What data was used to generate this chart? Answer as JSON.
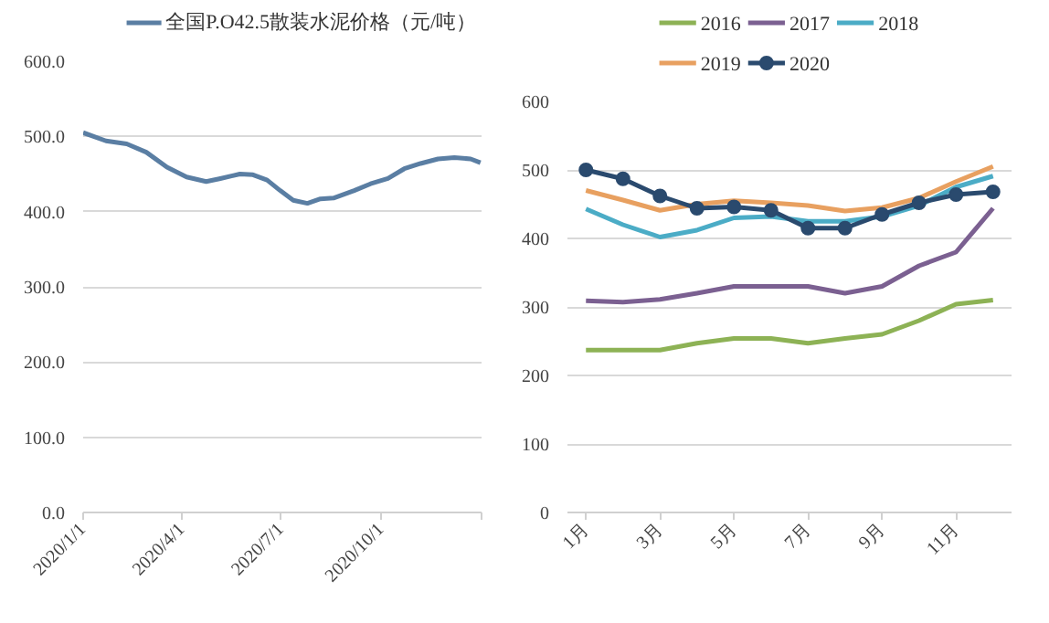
{
  "chart_data": [
    {
      "type": "line",
      "x": [
        "2020-01-01",
        "2020-01-22",
        "2020-02-10",
        "2020-02-28",
        "2020-03-18",
        "2020-04-05",
        "2020-04-23",
        "2020-05-06",
        "2020-05-24",
        "2020-06-05",
        "2020-06-18",
        "2020-06-30",
        "2020-07-12",
        "2020-07-25",
        "2020-08-06",
        "2020-08-18",
        "2020-09-06",
        "2020-09-21",
        "2020-10-07",
        "2020-10-22",
        "2020-11-06",
        "2020-11-22",
        "2020-12-07",
        "2020-12-22",
        "2020-12-31"
      ],
      "series": [
        {
          "name": "全国P.O42.5散装水泥价格（元/吨）",
          "color": "#5a7ea3",
          "values": [
            505,
            494,
            490,
            479,
            459,
            446,
            440,
            444,
            450,
            449,
            442,
            428,
            415,
            411,
            417,
            418,
            428,
            437,
            444,
            457,
            464,
            470,
            472,
            470,
            465
          ]
        }
      ],
      "xlim": [
        "2020-01-01",
        "2021-01-01"
      ],
      "xticks": [
        {
          "value": "2020-01-01",
          "label": "2020/1/1"
        },
        {
          "value": "2020-04-01",
          "label": "2020/4/1"
        },
        {
          "value": "2020-07-01",
          "label": "2020/7/1"
        },
        {
          "value": "2020-10-01",
          "label": "2020/10/1"
        },
        {
          "value": "2021-01-01",
          "label": null
        }
      ],
      "ylim": [
        0,
        600
      ],
      "yticks": [
        {
          "value": 0,
          "label": "0.0"
        },
        {
          "value": 100,
          "label": "100.0"
        },
        {
          "value": 200,
          "label": "200.0"
        },
        {
          "value": 300,
          "label": "300.0"
        },
        {
          "value": 400,
          "label": "400.0"
        },
        {
          "value": 500,
          "label": "500.0"
        },
        {
          "value": 600,
          "label": "600.0"
        }
      ],
      "grid": "y",
      "legend": "top",
      "marker": "none",
      "line_style": "solid"
    },
    {
      "type": "line",
      "categories": [
        "1月",
        null,
        "3月",
        null,
        "5月",
        null,
        "7月",
        null,
        "9月",
        null,
        "11月",
        null
      ],
      "series": [
        {
          "name": "2016",
          "color": "#8db255",
          "marker": "none",
          "values": [
            237,
            237,
            237,
            247,
            254,
            254,
            247,
            254,
            260,
            280,
            304,
            310
          ]
        },
        {
          "name": "2017",
          "color": "#7b6091",
          "marker": "none",
          "values": [
            309,
            307,
            311,
            320,
            330,
            330,
            330,
            320,
            330,
            360,
            380,
            444
          ]
        },
        {
          "name": "2018",
          "color": "#4bacc6",
          "marker": "none",
          "values": [
            443,
            420,
            402,
            412,
            430,
            432,
            425,
            425,
            432,
            448,
            475,
            491
          ]
        },
        {
          "name": "2019",
          "color": "#e8a060",
          "marker": "none",
          "values": [
            470,
            456,
            441,
            450,
            455,
            452,
            448,
            440,
            445,
            459,
            483,
            505
          ]
        },
        {
          "name": "2020",
          "color": "#2a4a6e",
          "marker": "circle",
          "values": [
            500,
            487,
            462,
            444,
            446,
            441,
            415,
            415,
            435,
            452,
            464,
            468
          ]
        }
      ],
      "ylim": [
        0,
        600
      ],
      "yticks": [
        0,
        100,
        200,
        300,
        400,
        500,
        600
      ],
      "grid": "y",
      "legend": "top",
      "line_style": "solid"
    }
  ]
}
